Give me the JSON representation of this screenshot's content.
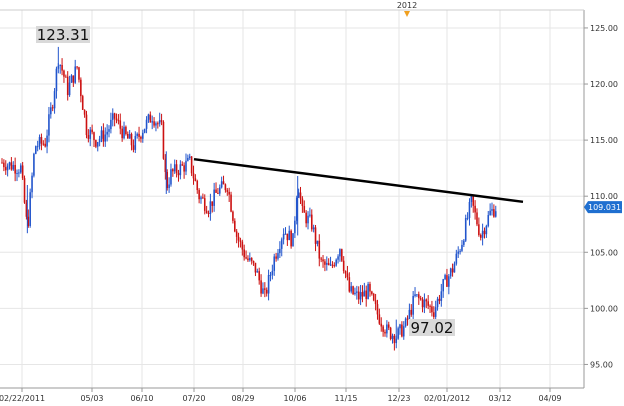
{
  "chart_data": {
    "type": "candlestick",
    "y_axis": {
      "ticks": [
        "125.00",
        "120.00",
        "115.00",
        "110.00",
        "105.00",
        "100.00",
        "95.00"
      ],
      "tick_values": [
        125,
        120,
        115,
        110,
        105,
        100,
        95
      ],
      "range": [
        92.9,
        126.6
      ],
      "position": "right"
    },
    "x_axis": {
      "ticks": [
        "02/22/2011",
        "05/03",
        "06/10",
        "07/20",
        "08/29",
        "10/06",
        "11/15",
        "12/23",
        "02/01/2012",
        "03/12",
        "04/09"
      ],
      "year_marker": "2012"
    },
    "grid": true,
    "last_price": {
      "label": "109.031",
      "value": 109.031
    },
    "annotations": [
      {
        "text": "123.31",
        "value": 123.31,
        "type": "high"
      },
      {
        "text": "97.02",
        "value": 97.02,
        "type": "low"
      }
    ],
    "trendline": {
      "start_value": 113.3,
      "end_value": 109.5,
      "color": "#000000"
    },
    "series_anchors": [
      {
        "t": 0.0,
        "v": 113.0
      },
      {
        "t": 2.0,
        "v": 112.5
      },
      {
        "t": 2.7,
        "v": 107.0
      },
      {
        "t": 3.5,
        "v": 114.5
      },
      {
        "t": 4.6,
        "v": 114.8
      },
      {
        "t": 5.4,
        "v": 118.5
      },
      {
        "t": 6.0,
        "v": 122.3
      },
      {
        "t": 6.5,
        "v": 121.0
      },
      {
        "t": 7.0,
        "v": 119.5
      },
      {
        "t": 8.0,
        "v": 121.5
      },
      {
        "t": 9.0,
        "v": 116.0
      },
      {
        "t": 10.0,
        "v": 115.0
      },
      {
        "t": 11.0,
        "v": 115.5
      },
      {
        "t": 12.0,
        "v": 117.0
      },
      {
        "t": 13.0,
        "v": 115.5
      },
      {
        "t": 14.0,
        "v": 114.5
      },
      {
        "t": 15.0,
        "v": 116.0
      },
      {
        "t": 16.0,
        "v": 117.2
      },
      {
        "t": 17.0,
        "v": 116.0
      },
      {
        "t": 17.5,
        "v": 110.8
      },
      {
        "t": 18.0,
        "v": 112.0
      },
      {
        "t": 19.0,
        "v": 112.5
      },
      {
        "t": 20.0,
        "v": 113.0
      },
      {
        "t": 21.0,
        "v": 110.0
      },
      {
        "t": 22.0,
        "v": 109.0
      },
      {
        "t": 23.0,
        "v": 110.5
      },
      {
        "t": 24.0,
        "v": 111.0
      },
      {
        "t": 25.0,
        "v": 106.5
      },
      {
        "t": 26.0,
        "v": 104.5
      },
      {
        "t": 27.0,
        "v": 103.5
      },
      {
        "t": 28.0,
        "v": 101.0
      },
      {
        "t": 29.0,
        "v": 104.5
      },
      {
        "t": 30.0,
        "v": 107.0
      },
      {
        "t": 31.0,
        "v": 106.0
      },
      {
        "t": 31.5,
        "v": 111.5
      },
      {
        "t": 32.0,
        "v": 108.5
      },
      {
        "t": 33.0,
        "v": 107.5
      },
      {
        "t": 34.0,
        "v": 104.0
      },
      {
        "t": 35.0,
        "v": 103.5
      },
      {
        "t": 36.0,
        "v": 105.5
      },
      {
        "t": 37.0,
        "v": 101.5
      },
      {
        "t": 38.0,
        "v": 101.0
      },
      {
        "t": 39.0,
        "v": 101.5
      },
      {
        "t": 40.0,
        "v": 99.5
      },
      {
        "t": 41.0,
        "v": 98.0
      },
      {
        "t": 42.0,
        "v": 97.5
      },
      {
        "t": 43.0,
        "v": 98.5
      },
      {
        "t": 44.0,
        "v": 101.0
      },
      {
        "t": 45.0,
        "v": 100.5
      },
      {
        "t": 46.0,
        "v": 99.8
      },
      {
        "t": 47.0,
        "v": 102.0
      },
      {
        "t": 48.0,
        "v": 103.5
      },
      {
        "t": 49.0,
        "v": 106.0
      },
      {
        "t": 50.0,
        "v": 109.5
      },
      {
        "t": 51.0,
        "v": 106.5
      },
      {
        "t": 52.0,
        "v": 108.5
      },
      {
        "t": 52.6,
        "v": 109.0
      }
    ],
    "colors": {
      "up": "#2255cc",
      "down": "#cc1111"
    }
  }
}
